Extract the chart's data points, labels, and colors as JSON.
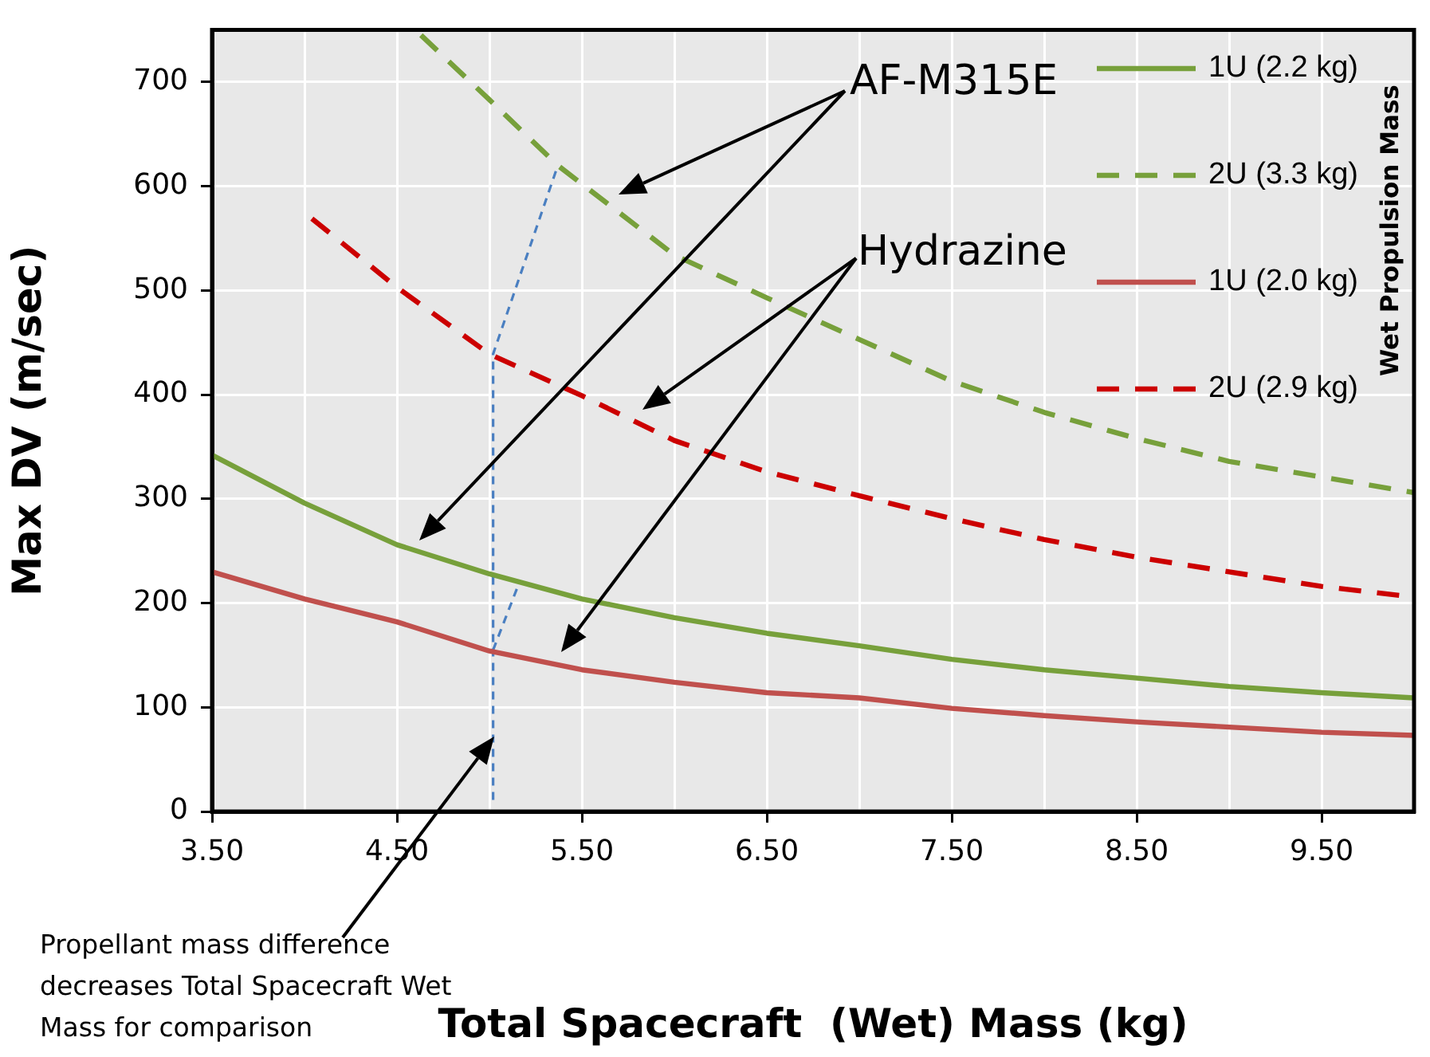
{
  "chart_data": {
    "type": "line",
    "xlabel": "Total Spacecraft  (Wet) Mass (kg)",
    "ylabel": "Max DV (m/sec)",
    "legend_title": "Wet Propulsion Mass",
    "annotations": [
      "AF-M315E",
      "Hydrazine",
      "Propellant mass difference decreases Total Spacecraft Wet Mass for comparison"
    ],
    "series": [
      {
        "name": "1U (2.2 kg)",
        "color": "#77a03b",
        "line_style": "solid",
        "x": [
          3.5,
          4.0,
          4.5,
          5.0,
          5.5,
          6.0,
          6.5,
          7.0,
          7.5,
          8.0,
          8.5,
          9.0,
          9.5,
          10.0
        ],
        "values": [
          342,
          296,
          256,
          228,
          204,
          186,
          171,
          159,
          146,
          136,
          128,
          120,
          114,
          109
        ]
      },
      {
        "name": "2U (3.3 kg)",
        "color": "#77a03b",
        "line_style": "dashed",
        "x": [
          4.63,
          5.0,
          5.37,
          6.0,
          6.5,
          7.0,
          7.5,
          8.0,
          8.5,
          9.0,
          9.5,
          10.0
        ],
        "values": [
          745,
          683,
          620,
          534,
          493,
          453,
          413,
          383,
          358,
          336,
          321,
          306
        ]
      },
      {
        "name": "1U (2.0 kg)",
        "color": "#c0504d",
        "line_style": "solid",
        "x": [
          3.5,
          4.0,
          4.5,
          5.0,
          5.5,
          6.0,
          6.5,
          7.0,
          7.5,
          8.0,
          8.5,
          9.0,
          9.5,
          10.0
        ],
        "values": [
          230,
          204,
          182,
          154,
          136,
          124,
          114,
          109,
          99,
          92,
          86,
          81,
          76,
          73
        ]
      },
      {
        "name": "2U (2.9 kg)",
        "color": "#cc0000",
        "line_style": "dashed",
        "x": [
          4.04,
          4.5,
          5.0,
          5.5,
          6.0,
          6.5,
          7.0,
          7.5,
          8.0,
          8.5,
          9.0,
          9.5,
          9.94
        ],
        "values": [
          569,
          503,
          439,
          399,
          356,
          326,
          303,
          281,
          261,
          244,
          230,
          216,
          207
        ]
      },
      {
        "color": "#4a7fc1",
        "line_style": "dotted",
        "x": [
          5.02,
          5.02,
          5.37,
          null,
          5.02,
          5.16
        ],
        "values": [
          11,
          439,
          620,
          null,
          155,
          219
        ]
      }
    ],
    "xlim": [
      3.5,
      10
    ],
    "xticks": [
      {
        "value": 3.5,
        "label": "3.50"
      },
      {
        "value": 4.0,
        "label": null
      },
      {
        "value": 4.5,
        "label": "4.50"
      },
      {
        "value": 5.0,
        "label": null
      },
      {
        "value": 5.5,
        "label": "5.50"
      },
      {
        "value": 6.0,
        "label": null
      },
      {
        "value": 6.5,
        "label": "6.50"
      },
      {
        "value": 7.0,
        "label": null
      },
      {
        "value": 7.5,
        "label": "7.50"
      },
      {
        "value": 8.0,
        "label": null
      },
      {
        "value": 8.5,
        "label": "8.50"
      },
      {
        "value": 9.0,
        "label": null
      },
      {
        "value": 9.5,
        "label": "9.50"
      }
    ],
    "ylim": [
      0,
      750
    ],
    "yticks": [
      0,
      100,
      200,
      300,
      400,
      500,
      600,
      700
    ],
    "grid": true,
    "legend": "top right",
    "marker": "none"
  }
}
